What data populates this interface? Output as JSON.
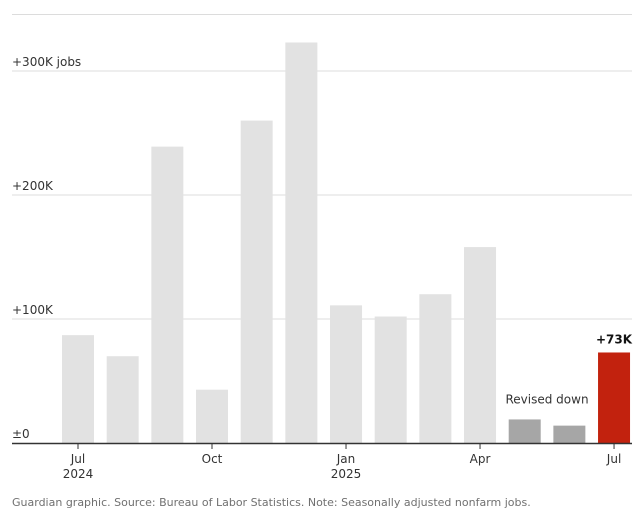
{
  "chart_data": {
    "type": "bar",
    "title": "",
    "xlabel": "",
    "ylabel": "",
    "ylim": [
      0,
      345
    ],
    "y_ticks": [
      {
        "value": 0,
        "label": "±0"
      },
      {
        "value": 100,
        "label": "+100K"
      },
      {
        "value": 200,
        "label": "+200K"
      },
      {
        "value": 300,
        "label": "+300K jobs"
      }
    ],
    "x_tick_labels": [
      {
        "bar_index": 0,
        "label": "Jul",
        "sublabel": "2024"
      },
      {
        "bar_index": 3,
        "label": "Oct",
        "sublabel": ""
      },
      {
        "bar_index": 6,
        "label": "Jan",
        "sublabel": "2025"
      },
      {
        "bar_index": 9,
        "label": "Apr",
        "sublabel": ""
      },
      {
        "bar_index": 12,
        "label": "Jul",
        "sublabel": ""
      }
    ],
    "bars": [
      {
        "value": 87,
        "kind": "standard"
      },
      {
        "value": 70,
        "kind": "standard"
      },
      {
        "value": 239,
        "kind": "standard"
      },
      {
        "value": 43,
        "kind": "standard"
      },
      {
        "value": 260,
        "kind": "standard"
      },
      {
        "value": 323,
        "kind": "standard"
      },
      {
        "value": 111,
        "kind": "standard"
      },
      {
        "value": 102,
        "kind": "standard"
      },
      {
        "value": 120,
        "kind": "standard"
      },
      {
        "value": 158,
        "kind": "standard"
      },
      {
        "value": 19,
        "kind": "revised"
      },
      {
        "value": 14,
        "kind": "revised"
      },
      {
        "value": 73,
        "kind": "latest",
        "label": "+73K"
      }
    ],
    "annotation": {
      "text": "Revised down"
    },
    "colors": {
      "standard": "#e2e2e2",
      "revised": "#a6a6a6",
      "latest": "#c2220e",
      "gridline": "#dcdcdc",
      "baseline": "#333333"
    },
    "grid": true
  },
  "footer": {
    "source": "Guardian graphic. Source: Bureau of Labor Statistics. Note: Seasonally adjusted nonfarm jobs."
  }
}
